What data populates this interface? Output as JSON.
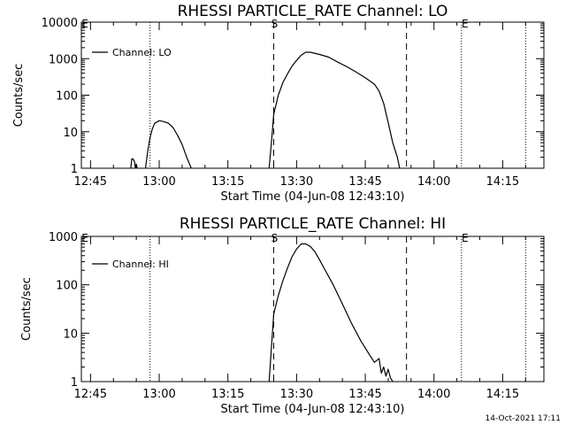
{
  "chart_data": [
    {
      "type": "line",
      "title": "RHESSI PARTICLE_RATE Channel: LO",
      "xlabel": "Start Time (04-Jun-08 12:43:10)",
      "ylabel": "Counts/sec",
      "yscale": "log",
      "ylim": [
        1,
        10000
      ],
      "yticks": [
        1,
        10,
        100,
        1000,
        10000
      ],
      "ytick_labels": [
        "1",
        "10",
        "100",
        "1000",
        "10000"
      ],
      "xlim": [
        "12:43",
        "14:24"
      ],
      "xticks": [
        "12:45",
        "13:00",
        "13:15",
        "13:30",
        "13:45",
        "14:00",
        "14:15"
      ],
      "legend": {
        "position": "top-left",
        "entries": [
          "Channel: LO"
        ]
      },
      "dashed_markers": [
        {
          "x": "13:25",
          "label": "S"
        },
        {
          "x": "13:54",
          "label": ""
        }
      ],
      "dotted_markers": [
        {
          "x": "12:43",
          "label": "E"
        },
        {
          "x": "12:58",
          "label": ""
        },
        {
          "x": "14:06",
          "label": "E"
        },
        {
          "x": "14:20",
          "label": ""
        }
      ],
      "series": [
        {
          "name": "Channel: LO",
          "segments": [
            {
              "x": [
                "12:53.8",
                "12:54.0",
                "12:54.3",
                "12:54.6",
                "12:54.8",
                "12:55.0",
                "12:55.2"
              ],
              "y": [
                1,
                1.8,
                1.8,
                1.5,
                1,
                1.3,
                1
              ]
            },
            {
              "x": [
                "12:57",
                "12:57.5",
                "12:58",
                "12:58.5",
                "12:59",
                "13:00",
                "13:01",
                "13:02",
                "13:03",
                "13:04",
                "13:05",
                "13:06",
                "13:07"
              ],
              "y": [
                1,
                3,
                7,
                12,
                17,
                20,
                19,
                17,
                13,
                8,
                4.5,
                2,
                1
              ]
            },
            {
              "x": [
                "13:24",
                "13:24.5",
                "13:25",
                "13:26",
                "13:27",
                "13:28",
                "13:29",
                "13:30",
                "13:31",
                "13:32",
                "13:33",
                "13:35",
                "13:37",
                "13:39",
                "13:41",
                "13:43",
                "13:45",
                "13:47",
                "13:48",
                "13:49",
                "13:50",
                "13:51",
                "13:52",
                "13:52.5"
              ],
              "y": [
                1,
                5,
                30,
                100,
                220,
                380,
                620,
                900,
                1250,
                1500,
                1500,
                1300,
                1100,
                800,
                600,
                430,
                300,
                200,
                130,
                60,
                18,
                5,
                2,
                1
              ]
            }
          ]
        }
      ]
    },
    {
      "type": "line",
      "title": "RHESSI PARTICLE_RATE Channel: HI",
      "xlabel": "Start Time (04-Jun-08 12:43:10)",
      "ylabel": "Counts/sec",
      "yscale": "log",
      "ylim": [
        1,
        1000
      ],
      "yticks": [
        1,
        10,
        100,
        1000
      ],
      "ytick_labels": [
        "1",
        "10",
        "100",
        "1000"
      ],
      "xlim": [
        "12:43",
        "14:24"
      ],
      "xticks": [
        "12:45",
        "13:00",
        "13:15",
        "13:30",
        "13:45",
        "14:00",
        "14:15"
      ],
      "legend": {
        "position": "top-left",
        "entries": [
          "Channel: HI"
        ]
      },
      "dashed_markers": [
        {
          "x": "13:25",
          "label": "S"
        },
        {
          "x": "13:54",
          "label": ""
        }
      ],
      "dotted_markers": [
        {
          "x": "12:43",
          "label": "E"
        },
        {
          "x": "12:58",
          "label": ""
        },
        {
          "x": "14:06",
          "label": "E"
        },
        {
          "x": "14:20",
          "label": ""
        }
      ],
      "series": [
        {
          "name": "Channel: HI",
          "segments": [
            {
              "x": [
                "13:24",
                "13:24.5",
                "13:25",
                "13:26",
                "13:27",
                "13:28",
                "13:29",
                "13:30",
                "13:31",
                "13:32",
                "13:33",
                "13:34",
                "13:35",
                "13:36",
                "13:38",
                "13:40",
                "13:42",
                "13:44",
                "13:46",
                "13:47",
                "13:48",
                "13:48.5",
                "13:49",
                "13:49.5",
                "13:50",
                "13:50.5",
                "13:51"
              ],
              "y": [
                1,
                5,
                25,
                60,
                120,
                220,
                380,
                550,
                700,
                700,
                620,
                480,
                330,
                220,
                100,
                40,
                16,
                7,
                3.5,
                2.5,
                3,
                1.5,
                2,
                1.3,
                1.8,
                1.2,
                1
              ]
            }
          ]
        }
      ]
    }
  ],
  "footer": {
    "date": "14-Oct-2021 17:11"
  }
}
